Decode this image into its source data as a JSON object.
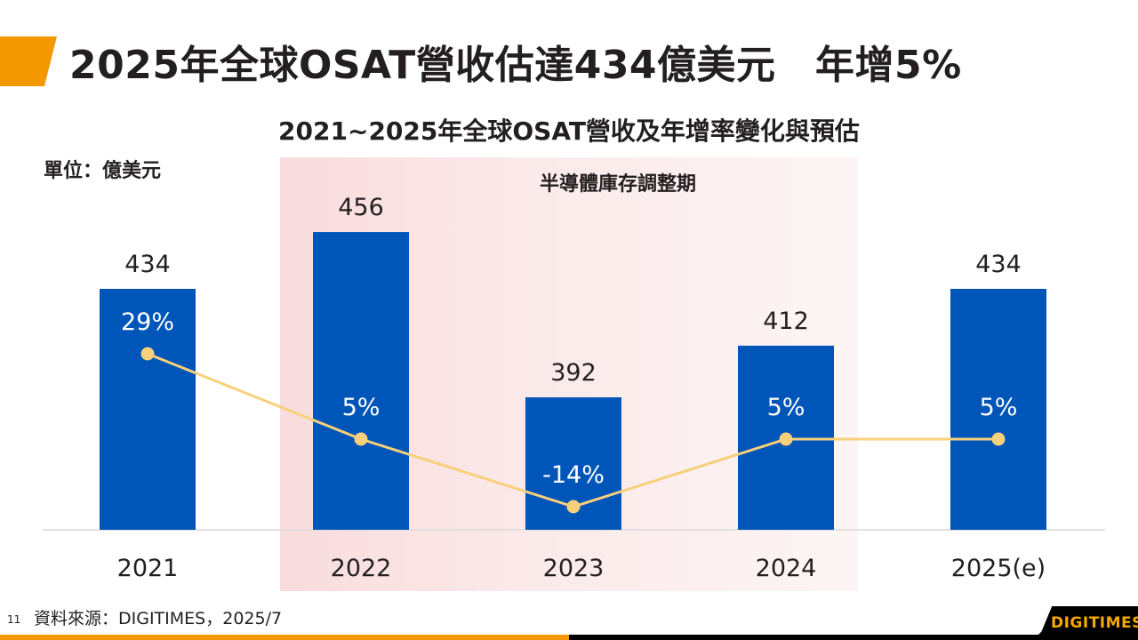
{
  "slide": {
    "title": "2025年全球OSAT營收估達434億美元　年增5%",
    "page_number": "11",
    "source": "資料來源：DIGITIMES，2025/7",
    "logo": "DIGITIMES"
  },
  "colors": {
    "accent": "#f39800",
    "bar": "#0055b8",
    "line": "#f8cf7a",
    "band": "#f9dcdd",
    "text": "#231f20"
  },
  "chart_data": {
    "type": "bar",
    "title": "2021~2025年全球OSAT營收及年增率變化與預估",
    "unit_label": "單位：億美元",
    "categories": [
      "2021",
      "2022",
      "2023",
      "2024",
      "2025(e)"
    ],
    "series": [
      {
        "name": "營收",
        "type": "bar",
        "values": [
          434,
          456,
          392,
          412,
          434
        ],
        "labels": [
          "434",
          "456",
          "392",
          "412",
          "434"
        ]
      },
      {
        "name": "年增率",
        "type": "line",
        "values": [
          29,
          5,
          -14,
          5,
          5
        ],
        "labels": [
          "29%",
          "5%",
          "-14%",
          "5%",
          "5%"
        ]
      }
    ],
    "shaded_region": {
      "label": "半導體庫存調整期",
      "from": "2022",
      "to": "2024"
    },
    "bar_axis_range": [
      340.7,
      480
    ],
    "line_axis_range": [
      -20,
      35
    ],
    "grid": false,
    "legend": "none"
  }
}
